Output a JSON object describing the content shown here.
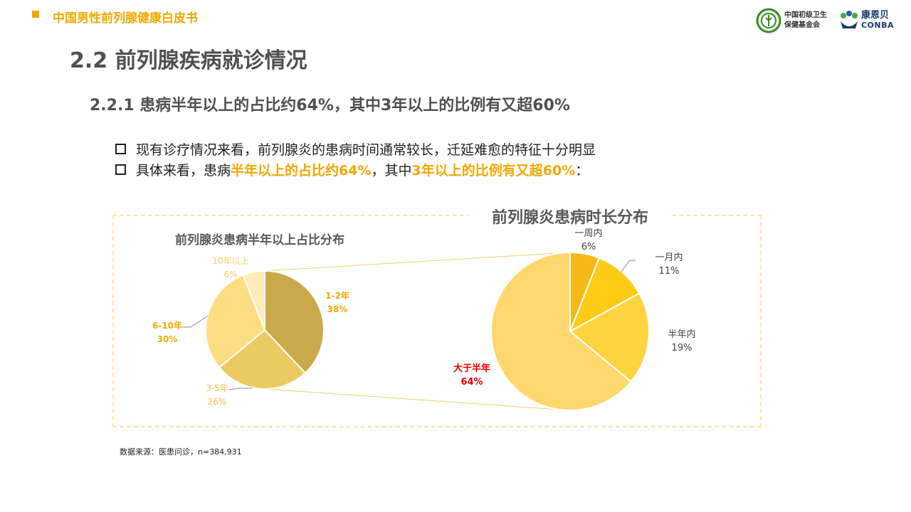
{
  "header": {
    "title": "中国男性前列腺健康白皮书",
    "logo1_line1": "中国初级卫生",
    "logo1_line2": "保健基金会",
    "logo2_line1": "康恩贝",
    "logo2_line2": "CONBA"
  },
  "section_title": "2.2 前列腺疾病就诊情况",
  "subsection_title": "2.2.1  患病半年以上的占比约64%，其中3年以上的比例有又超60%",
  "bullets": {
    "b1": "现有诊疗情况来看，前列腺炎的患病时间通常较长，迁延难愈的特征十分明显",
    "b2_prefix": "具体来看，患病",
    "b2_hl1": "半年以上的占比约64%",
    "b2_mid": "，其中",
    "b2_hl2": "3年以上的比例有又超60%",
    "b2_suffix": "："
  },
  "source": "数据来源：医患问诊，n=384,931",
  "chart_data": [
    {
      "type": "pie",
      "title": "前列腺炎患病时长分布",
      "slices": [
        {
          "label": "一周内",
          "pct_label": "6%",
          "value": 6,
          "color": "#f6b817"
        },
        {
          "label": "一月内",
          "pct_label": "11%",
          "value": 11,
          "color": "#fecb16"
        },
        {
          "label": "半年内",
          "pct_label": "19%",
          "value": 19,
          "color": "#fdd43f"
        },
        {
          "label": "大于半年",
          "pct_label": "64%",
          "value": 64,
          "color": "#fed86c"
        }
      ]
    },
    {
      "type": "pie",
      "title": "前列腺炎患病半年以上占比分布",
      "slices": [
        {
          "label": "1-2年",
          "pct_label": "38%",
          "value": 38,
          "color": "#caa94a"
        },
        {
          "label": "3-5年",
          "pct_label": "26%",
          "value": 26,
          "color": "#ebcb61"
        },
        {
          "label": "6-10年",
          "pct_label": "30%",
          "value": 30,
          "color": "#fedd82"
        },
        {
          "label": "10年以上",
          "pct_label": "6%",
          "value": 6,
          "color": "#fdebba"
        }
      ]
    }
  ]
}
